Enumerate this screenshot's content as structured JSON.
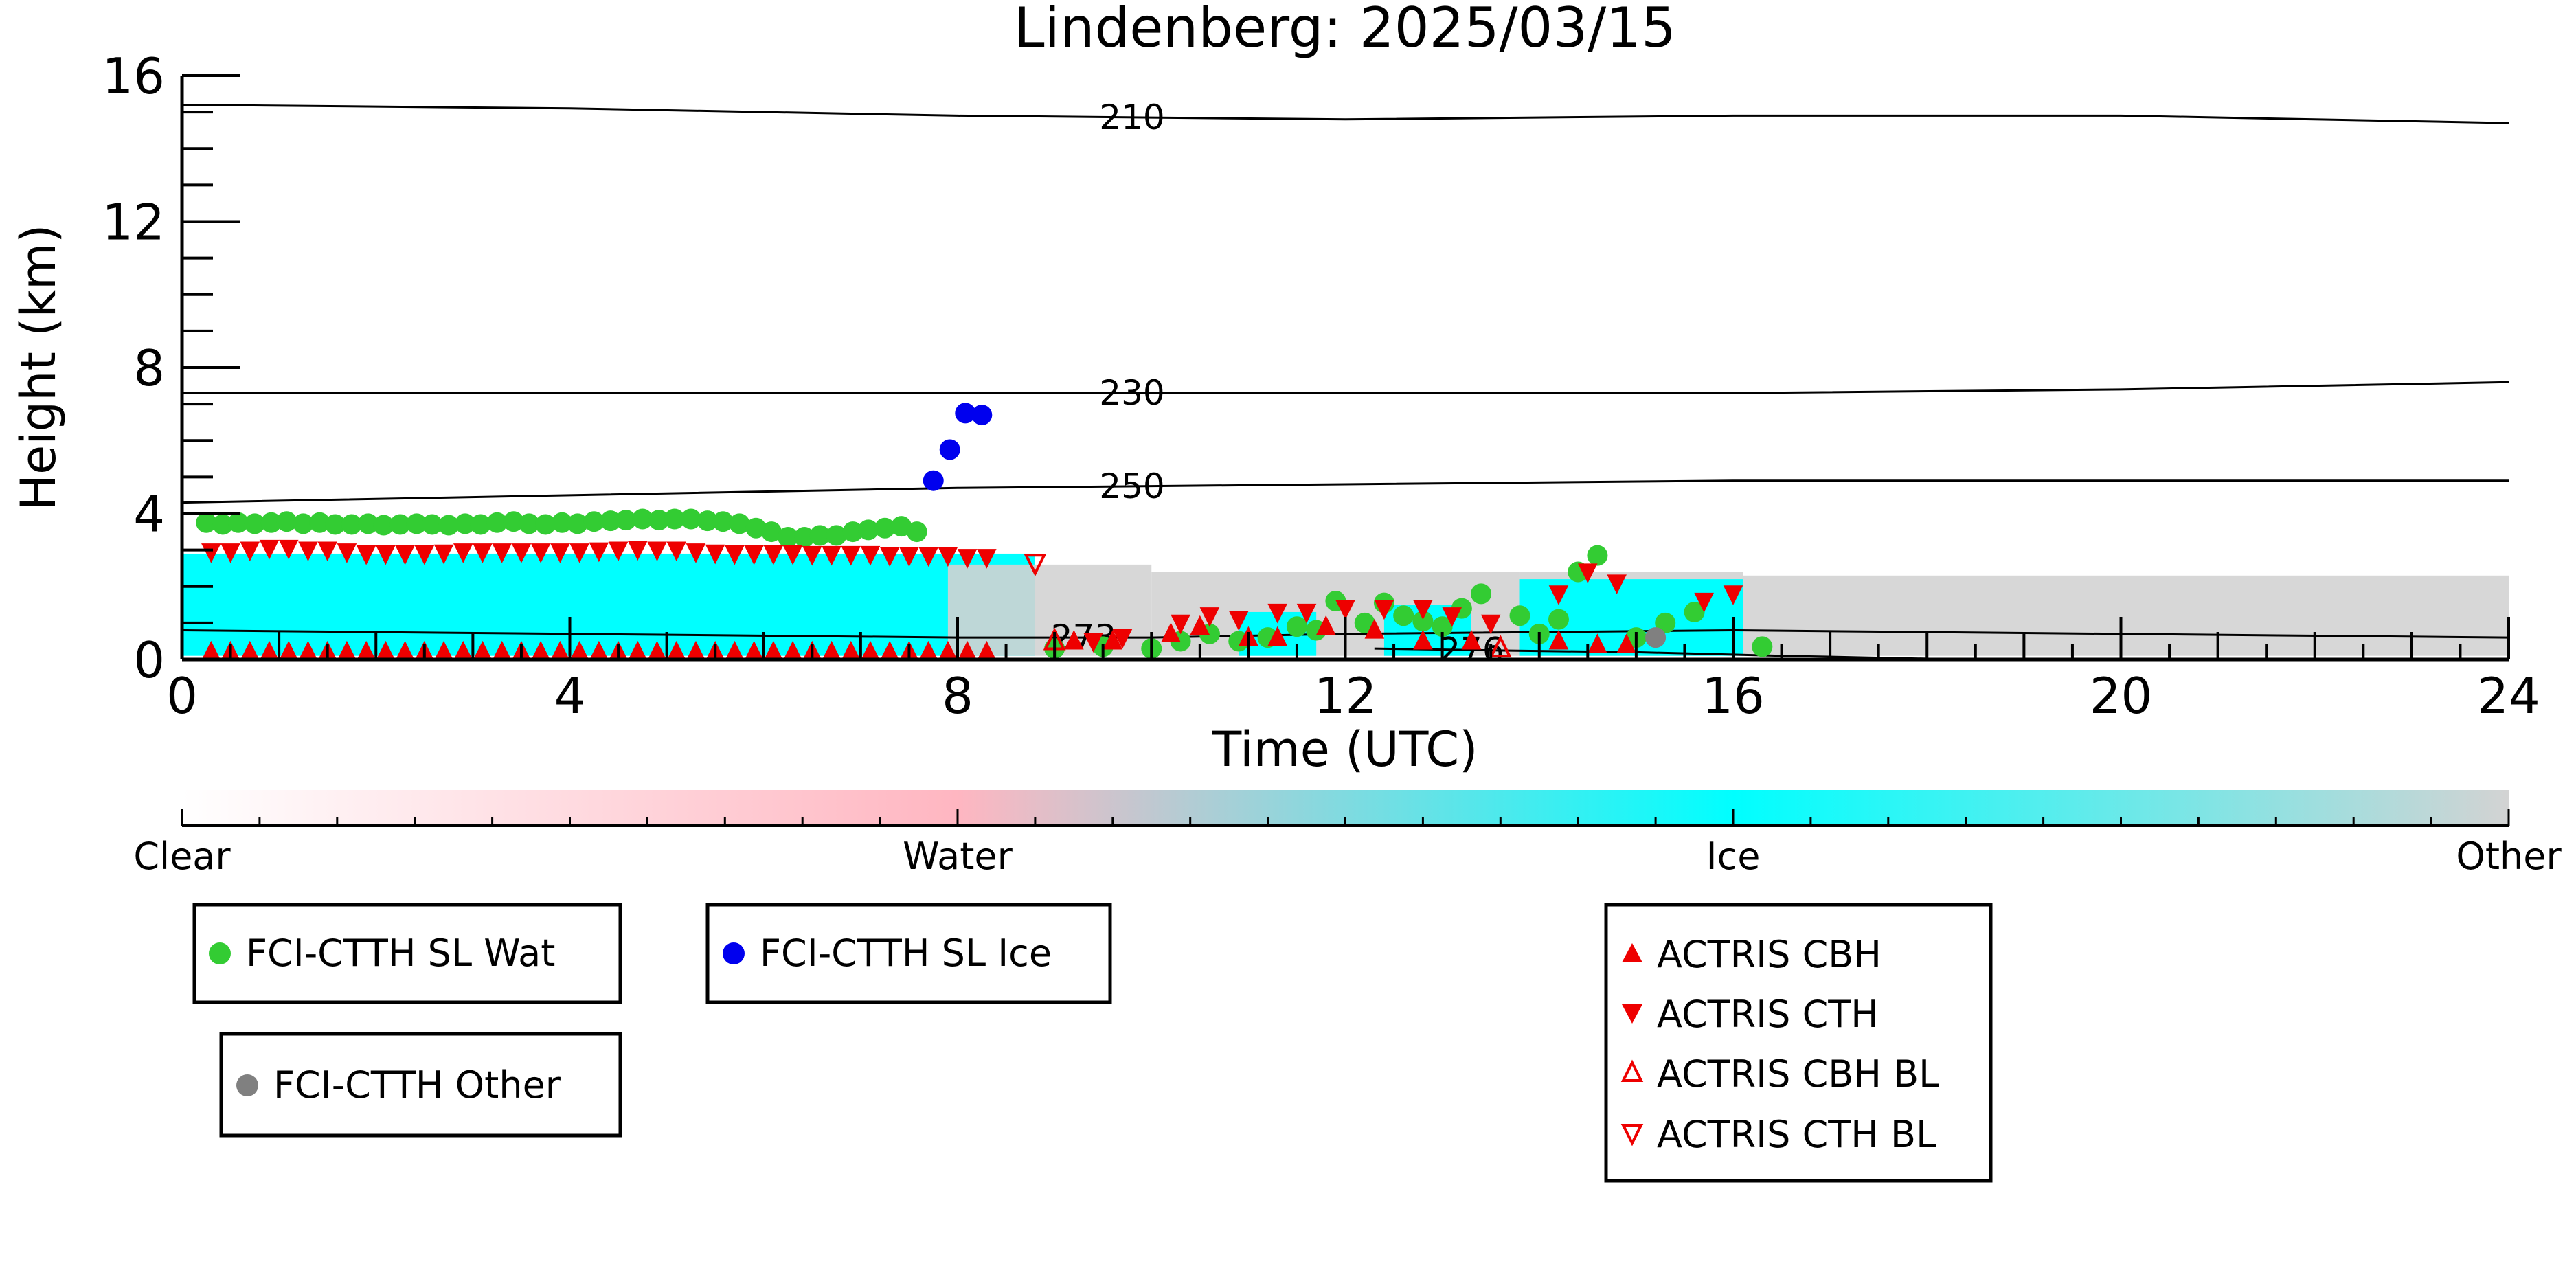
{
  "chart_data": {
    "type": "scatter",
    "title": "Lindenberg: 2025/03/15",
    "xlabel": "Time (UTC)",
    "ylabel": "Height (km)",
    "xlim": [
      0,
      24
    ],
    "ylim": [
      0,
      16
    ],
    "xticks": [
      0,
      4,
      8,
      12,
      16,
      20,
      24
    ],
    "yticks": [
      0,
      4,
      8,
      12,
      16
    ],
    "grid": false,
    "temperature_contours": [
      {
        "label": "210",
        "label_x": 9.8,
        "points": [
          [
            0,
            15.2
          ],
          [
            4,
            15.1
          ],
          [
            8,
            14.9
          ],
          [
            12,
            14.8
          ],
          [
            16,
            14.9
          ],
          [
            20,
            14.9
          ],
          [
            24,
            14.7
          ]
        ]
      },
      {
        "label": "230",
        "label_x": 9.8,
        "points": [
          [
            0,
            7.3
          ],
          [
            4,
            7.3
          ],
          [
            8,
            7.3
          ],
          [
            12,
            7.3
          ],
          [
            16,
            7.3
          ],
          [
            20,
            7.4
          ],
          [
            24,
            7.6
          ]
        ]
      },
      {
        "label": "250",
        "label_x": 9.8,
        "points": [
          [
            0,
            4.3
          ],
          [
            4,
            4.5
          ],
          [
            8,
            4.7
          ],
          [
            12,
            4.8
          ],
          [
            16,
            4.9
          ],
          [
            20,
            4.9
          ],
          [
            24,
            4.9
          ]
        ]
      },
      {
        "label": "273",
        "label_x": 9.3,
        "points": [
          [
            0,
            0.8
          ],
          [
            4,
            0.7
          ],
          [
            8,
            0.6
          ],
          [
            10,
            0.6
          ],
          [
            12,
            0.7
          ],
          [
            16,
            0.8
          ],
          [
            20,
            0.7
          ],
          [
            24,
            0.6
          ]
        ]
      },
      {
        "label": "276",
        "label_x": 13.3,
        "points": [
          [
            12.3,
            0.3
          ],
          [
            13.5,
            0.25
          ],
          [
            15,
            0.2
          ],
          [
            16.5,
            0.1
          ],
          [
            18,
            0.02
          ]
        ]
      }
    ],
    "phase_regions": [
      {
        "class": "Ice",
        "x0": 0.0,
        "x1": 8.8,
        "y0": 0.1,
        "y1": 2.9
      },
      {
        "class": "Other",
        "x0": 7.9,
        "x1": 10.0,
        "y0": 0.1,
        "y1": 2.6
      },
      {
        "class": "Other",
        "x0": 10.0,
        "x1": 13.8,
        "y0": 0.1,
        "y1": 2.4
      },
      {
        "class": "Ice",
        "x0": 10.9,
        "x1": 11.7,
        "y0": 0.1,
        "y1": 1.3
      },
      {
        "class": "Ice",
        "x0": 12.4,
        "x1": 13.3,
        "y0": 0.1,
        "y1": 1.5
      },
      {
        "class": "Other",
        "x0": 13.8,
        "x1": 16.1,
        "y0": 0.1,
        "y1": 2.4
      },
      {
        "class": "Ice",
        "x0": 13.8,
        "x1": 16.1,
        "y0": 0.1,
        "y1": 2.2
      },
      {
        "class": "Other",
        "x0": 16.1,
        "x1": 24.0,
        "y0": 0.1,
        "y1": 2.3
      }
    ],
    "colorbar": {
      "labels": [
        "Clear",
        "Water",
        "Ice",
        "Other"
      ],
      "colors": [
        "#ffffff",
        "#ffb6c1",
        "#00ffff",
        "#d3d3d3"
      ]
    },
    "series": [
      {
        "name": "FCI-CTTH SL Wat",
        "marker": "circle",
        "color": "#33cc33",
        "x": [
          0.25,
          0.42,
          0.58,
          0.75,
          0.92,
          1.08,
          1.25,
          1.42,
          1.58,
          1.75,
          1.92,
          2.08,
          2.25,
          2.42,
          2.58,
          2.75,
          2.92,
          3.08,
          3.25,
          3.42,
          3.58,
          3.75,
          3.92,
          4.08,
          4.25,
          4.42,
          4.58,
          4.75,
          4.92,
          5.08,
          5.25,
          5.42,
          5.58,
          5.75,
          5.92,
          6.08,
          6.25,
          6.42,
          6.58,
          6.75,
          6.92,
          7.08,
          7.25,
          7.42,
          7.58,
          9.0,
          9.5,
          10.0,
          10.3,
          10.6,
          10.9,
          11.2,
          11.5,
          11.7,
          11.9,
          12.2,
          12.4,
          12.6,
          12.8,
          13.0,
          13.2,
          13.4,
          13.8,
          14.0,
          14.2,
          14.4,
          14.6,
          15.0,
          15.3,
          15.6,
          16.3
        ],
        "y": [
          3.75,
          3.7,
          3.75,
          3.72,
          3.75,
          3.78,
          3.72,
          3.75,
          3.7,
          3.7,
          3.72,
          3.68,
          3.7,
          3.72,
          3.7,
          3.68,
          3.72,
          3.7,
          3.75,
          3.78,
          3.72,
          3.7,
          3.75,
          3.72,
          3.78,
          3.8,
          3.82,
          3.85,
          3.82,
          3.85,
          3.85,
          3.8,
          3.78,
          3.72,
          3.6,
          3.5,
          3.35,
          3.35,
          3.4,
          3.4,
          3.5,
          3.55,
          3.6,
          3.65,
          3.5,
          0.3,
          0.35,
          0.3,
          0.5,
          0.7,
          0.5,
          0.6,
          0.9,
          0.8,
          1.6,
          1.0,
          1.55,
          1.2,
          1.05,
          0.9,
          1.4,
          1.8,
          1.2,
          0.7,
          1.1,
          2.4,
          2.85,
          0.6,
          1.0,
          1.3,
          0.35
        ]
      },
      {
        "name": "FCI-CTTH SL Ice",
        "marker": "circle",
        "color": "#0000ee",
        "x": [
          7.75,
          7.92,
          8.08,
          8.25
        ],
        "y": [
          4.9,
          5.75,
          6.75,
          6.7
        ]
      },
      {
        "name": "FCI-CTTH Other",
        "marker": "circle",
        "color": "#808080",
        "x": [
          15.2
        ],
        "y": [
          0.6
        ]
      },
      {
        "name": "ACTRIS CBH",
        "marker": "triangle-up",
        "color": "#ee0000",
        "x": [
          0.3,
          0.5,
          0.7,
          0.9,
          1.1,
          1.3,
          1.5,
          1.7,
          1.9,
          2.1,
          2.3,
          2.5,
          2.7,
          2.9,
          3.1,
          3.3,
          3.5,
          3.7,
          3.9,
          4.1,
          4.3,
          4.5,
          4.7,
          4.9,
          5.1,
          5.3,
          5.5,
          5.7,
          5.9,
          6.1,
          6.3,
          6.5,
          6.7,
          6.9,
          7.1,
          7.3,
          7.5,
          7.7,
          7.9,
          8.1,
          8.3,
          9.2,
          9.6,
          10.2,
          10.5,
          11.0,
          11.3,
          11.8,
          12.3,
          12.8,
          13.3,
          14.2,
          14.6,
          14.9
        ],
        "y": [
          0.2,
          0.2,
          0.2,
          0.2,
          0.2,
          0.2,
          0.2,
          0.2,
          0.2,
          0.2,
          0.2,
          0.2,
          0.2,
          0.2,
          0.2,
          0.2,
          0.2,
          0.2,
          0.2,
          0.2,
          0.2,
          0.2,
          0.2,
          0.2,
          0.2,
          0.2,
          0.2,
          0.2,
          0.2,
          0.2,
          0.2,
          0.2,
          0.2,
          0.2,
          0.2,
          0.2,
          0.2,
          0.2,
          0.2,
          0.2,
          0.2,
          0.5,
          0.5,
          0.7,
          0.9,
          0.6,
          0.6,
          0.9,
          0.8,
          0.5,
          0.5,
          0.5,
          0.4,
          0.4
        ]
      },
      {
        "name": "ACTRIS CTH",
        "marker": "triangle-down",
        "color": "#ee0000",
        "x": [
          0.3,
          0.5,
          0.7,
          0.9,
          1.1,
          1.3,
          1.5,
          1.7,
          1.9,
          2.1,
          2.3,
          2.5,
          2.7,
          2.9,
          3.1,
          3.3,
          3.5,
          3.7,
          3.9,
          4.1,
          4.3,
          4.5,
          4.7,
          4.9,
          5.1,
          5.3,
          5.5,
          5.7,
          5.9,
          6.1,
          6.3,
          6.5,
          6.7,
          6.9,
          7.1,
          7.3,
          7.5,
          7.7,
          7.9,
          8.1,
          8.3,
          9.4,
          9.7,
          10.3,
          10.6,
          10.9,
          11.3,
          11.6,
          12.0,
          12.4,
          12.8,
          13.1,
          13.5,
          14.2,
          14.5,
          14.8,
          15.7,
          16.0
        ],
        "y": [
          2.95,
          2.95,
          3.0,
          3.05,
          3.05,
          3.0,
          3.0,
          2.95,
          2.9,
          2.9,
          2.9,
          2.9,
          2.92,
          2.95,
          2.95,
          2.95,
          2.95,
          2.95,
          2.95,
          2.95,
          2.98,
          3.0,
          3.02,
          3.0,
          3.0,
          2.95,
          2.92,
          2.9,
          2.9,
          2.9,
          2.9,
          2.88,
          2.88,
          2.88,
          2.88,
          2.85,
          2.85,
          2.85,
          2.85,
          2.8,
          2.8,
          0.5,
          0.6,
          1.0,
          1.2,
          1.1,
          1.3,
          1.3,
          1.4,
          1.4,
          1.4,
          1.2,
          1.0,
          1.8,
          2.4,
          2.1,
          1.6,
          1.8
        ]
      },
      {
        "name": "ACTRIS CBH BL",
        "marker": "triangle-up-open",
        "color": "#ee0000",
        "x": [
          9.0,
          13.6
        ],
        "y": [
          0.5,
          0.3
        ]
      },
      {
        "name": "ACTRIS CTH BL",
        "marker": "triangle-down-open",
        "color": "#ee0000",
        "x": [
          8.8
        ],
        "y": [
          2.65
        ]
      }
    ]
  }
}
